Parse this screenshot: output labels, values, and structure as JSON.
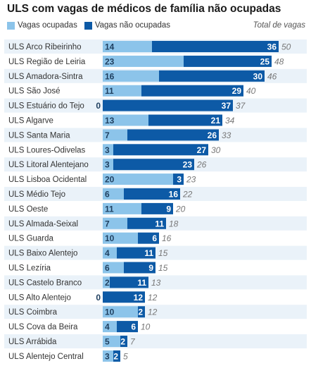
{
  "title": "ULS com vagas de médicos de família não ocupadas",
  "legend": {
    "occupied": "Vagas ocupadas",
    "unoccupied": "Vagas não ocupadas",
    "total": "Total de vagas"
  },
  "colors": {
    "occupied": "#8cc4ea",
    "unoccupied": "#0d5aa6",
    "row_band": "#eaf2f9"
  },
  "chart_data": {
    "type": "bar",
    "stacked": true,
    "orientation": "horizontal",
    "categories": [
      "ULS Arco Ribeirinho",
      "ULS Região de Leiria",
      "ULS Amadora-Sintra",
      "ULS São José",
      "ULS Estuário do Tejo",
      "ULS Algarve",
      "ULS Santa Maria",
      "ULS Loures-Odivelas",
      "ULS Litoral Alentejano",
      "ULS Lisboa Ocidental",
      "ULS Médio Tejo",
      "ULS Oeste",
      "ULS Almada-Seixal",
      "ULS Guarda",
      "ULS Baixo Alentejo",
      "ULS Lezíria",
      "ULS Castelo Branco",
      "ULS Alto Alentejo",
      "ULS Coimbra",
      "ULS Cova da Beira",
      "ULS Arrábida",
      "ULS Alentejo Central"
    ],
    "series": [
      {
        "name": "Vagas ocupadas",
        "values": [
          14,
          23,
          16,
          11,
          0,
          13,
          7,
          3,
          3,
          20,
          6,
          11,
          7,
          10,
          4,
          6,
          2,
          0,
          10,
          4,
          5,
          3
        ]
      },
      {
        "name": "Vagas não ocupadas",
        "values": [
          36,
          25,
          30,
          29,
          37,
          21,
          26,
          27,
          23,
          3,
          16,
          9,
          11,
          6,
          11,
          9,
          11,
          12,
          2,
          6,
          2,
          2
        ]
      }
    ],
    "totals": [
      50,
      48,
      46,
      40,
      37,
      34,
      33,
      30,
      26,
      23,
      22,
      20,
      18,
      16,
      15,
      15,
      13,
      12,
      12,
      10,
      7,
      5
    ],
    "totals_label": "Total de vagas"
  }
}
